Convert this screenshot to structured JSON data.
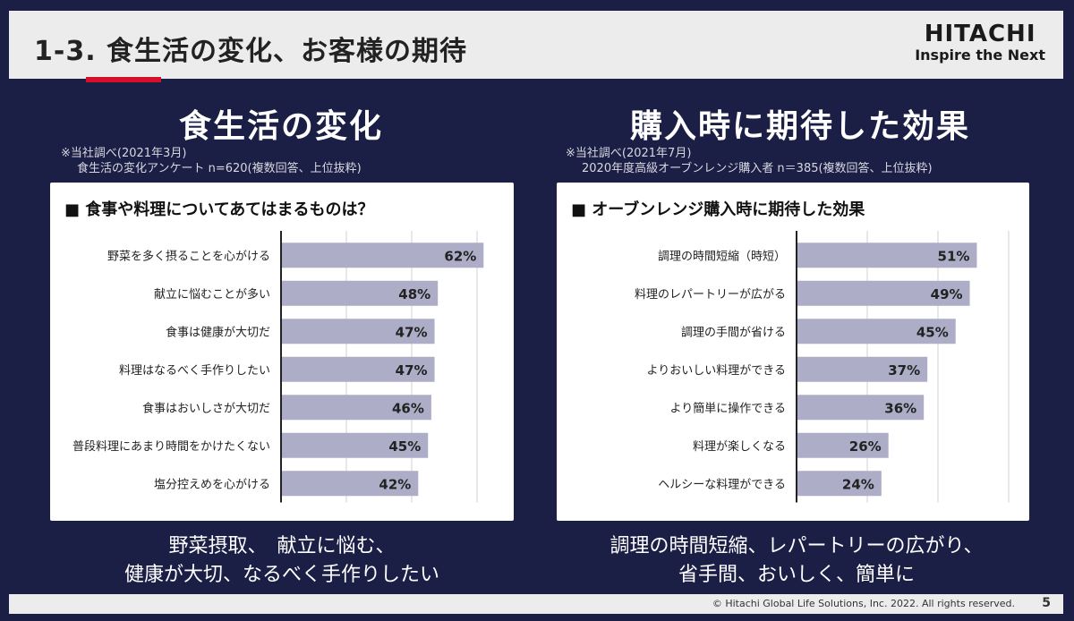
{
  "header": {
    "title": "1-3. 食生活の変化、お客様の期待",
    "brand_name": "HITACHI",
    "brand_tagline": "Inspire the Next"
  },
  "left": {
    "section_title": "食生活の変化",
    "note_line1": "※当社調べ(2021年3月)",
    "note_line2": "食生活の変化アンケート n=620(複数回答、上位抜粋)",
    "panel_heading": "■ 食事や料理についてあてはまるものは？",
    "summary_line1": "野菜摂取、　献立に悩む、",
    "summary_line2": "健康が大切、なるべく手作りしたい"
  },
  "right": {
    "section_title": "購入時に期待した効果",
    "note_line1": "※当社調べ(2021年7月)",
    "note_line2": "2020年度高級オーブンレンジ購入者 n＝385(複数回答、上位抜粋)",
    "panel_heading": "■ オーブンレンジ購入時に期待した効果",
    "summary_line1": "調理の時間短縮、レパートリーの広がり、",
    "summary_line2": "省手間、おいしく、簡単に"
  },
  "footer": {
    "copyright": "© Hitachi Global Life Solutions, Inc. 2022. All rights reserved.",
    "page_number": "5"
  },
  "colors": {
    "background": "#1b1e45",
    "bar": "#adadc8",
    "accent": "#d6102a"
  },
  "chart_data": [
    {
      "type": "bar",
      "orientation": "horizontal",
      "title": "食事や料理についてあてはまるものは？",
      "categories": [
        "野菜を多く摂ることを心がける",
        "献立に悩むことが多い",
        "食事は健康が大切だ",
        "料理はなるべく手作りしたい",
        "食事はおいしさが大切だ",
        "普段料理にあまり時間をかけたくない",
        "塩分控えめを心がける"
      ],
      "values": [
        62,
        48,
        47,
        47,
        46,
        45,
        42
      ],
      "value_labels": [
        "62%",
        "48%",
        "47%",
        "47%",
        "46%",
        "45%",
        "42%"
      ],
      "unit": "%",
      "xlim": [
        0,
        80
      ],
      "grid": true
    },
    {
      "type": "bar",
      "orientation": "horizontal",
      "title": "オーブンレンジ購入時に期待した効果",
      "categories": [
        "調理の時間短縮（時短）",
        "料理のレパートリーが広がる",
        "調理の手間が省ける",
        "よりおいしい料理ができる",
        "より簡単に操作できる",
        "料理が楽しくなる",
        "ヘルシーな料理ができる"
      ],
      "values": [
        51,
        49,
        45,
        37,
        36,
        26,
        24
      ],
      "value_labels": [
        "51%",
        "49%",
        "45%",
        "37%",
        "36%",
        "26%",
        "24%"
      ],
      "unit": "%",
      "xlim": [
        0,
        60
      ],
      "grid": true
    }
  ]
}
